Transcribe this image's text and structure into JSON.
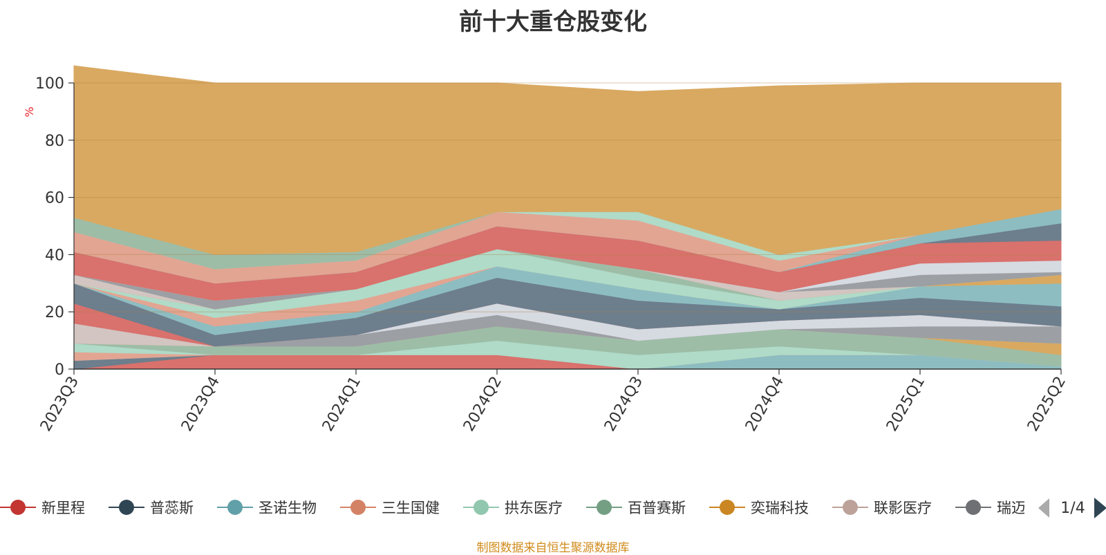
{
  "chart_data": {
    "type": "area",
    "title": "前十大重仓股变化",
    "ylabel": "%",
    "xlabel": "",
    "ylim": [
      0,
      100
    ],
    "yticks": [
      0,
      20,
      40,
      60,
      80,
      100
    ],
    "grid": true,
    "stacked": true,
    "categories": [
      "2023Q3",
      "2023Q4",
      "2024Q1",
      "2024Q2",
      "2024Q3",
      "2024Q4",
      "2025Q1",
      "2025Q2"
    ],
    "series": [
      {
        "name": "新里程",
        "color": "#d9716c",
        "values": [
          0,
          5,
          5,
          5,
          0,
          0,
          0,
          0
        ]
      },
      {
        "name": "普蕊斯",
        "color": "#6d7e8d",
        "values": [
          3,
          0,
          0,
          0,
          0,
          0,
          0,
          0
        ]
      },
      {
        "name": "圣诺生物",
        "color": "#8dbdc1",
        "values": [
          0,
          0,
          0,
          0,
          0,
          5,
          5,
          1
        ]
      },
      {
        "name": "三生国健",
        "color": "#e2a592",
        "values": [
          3,
          0,
          0,
          0,
          0,
          0,
          0,
          0
        ]
      },
      {
        "name": "拱东医疗",
        "color": "#afdbc8",
        "values": [
          3,
          0,
          0,
          5,
          5,
          3,
          0,
          0
        ]
      },
      {
        "name": "百普赛斯",
        "color": "#9dbda7",
        "values": [
          0,
          3,
          3,
          5,
          5,
          6,
          6,
          4
        ]
      },
      {
        "name": "奕瑞科技",
        "color": "#d9a961",
        "values": [
          0,
          0,
          0,
          0,
          0,
          0,
          0,
          4
        ]
      },
      {
        "name": "联影医疗",
        "color": "#d3c5c1",
        "values": [
          7,
          0,
          0,
          0,
          0,
          0,
          0,
          0
        ]
      },
      {
        "name": "瑞迈特",
        "color": "#9c9fa3",
        "values": [
          0,
          0,
          4,
          4,
          0,
          0,
          4,
          6
        ]
      },
      {
        "name": "",
        "color": "#d6dae1",
        "values": [
          0,
          0,
          0,
          4,
          4,
          3,
          4,
          0
        ]
      },
      {
        "name": "",
        "color": "#d9716c",
        "values": [
          7,
          0,
          0,
          0,
          0,
          0,
          0,
          0
        ]
      },
      {
        "name": "",
        "color": "#6d7e8d",
        "values": [
          7,
          4,
          6,
          9,
          10,
          4,
          6,
          7
        ]
      },
      {
        "name": "",
        "color": "#8dbdc1",
        "values": [
          0,
          3,
          2,
          4,
          4,
          0,
          4,
          8
        ]
      },
      {
        "name": "",
        "color": "#e2a592",
        "values": [
          0,
          3,
          4,
          0,
          0,
          0,
          0,
          0
        ]
      },
      {
        "name": "",
        "color": "#afdbc8",
        "values": [
          0,
          3,
          4,
          6,
          4,
          3,
          0,
          0
        ]
      },
      {
        "name": "",
        "color": "#9dbda7",
        "values": [
          0,
          0,
          0,
          0,
          3,
          0,
          0,
          0
        ]
      },
      {
        "name": "",
        "color": "#d9a961",
        "values": [
          0,
          0,
          0,
          0,
          0,
          0,
          0,
          3
        ]
      },
      {
        "name": "",
        "color": "#d3c5c1",
        "values": [
          3,
          0,
          0,
          0,
          0,
          3,
          0,
          0
        ]
      },
      {
        "name": "",
        "color": "#9c9fa3",
        "values": [
          0,
          3,
          0,
          0,
          0,
          0,
          4,
          1
        ]
      },
      {
        "name": "",
        "color": "#d6dae1",
        "values": [
          0,
          0,
          0,
          0,
          0,
          0,
          4,
          4
        ]
      },
      {
        "name": "",
        "color": "#d9716c",
        "values": [
          8,
          6,
          6,
          8,
          10,
          7,
          7,
          7
        ]
      },
      {
        "name": "",
        "color": "#6d7e8d",
        "values": [
          0,
          0,
          0,
          0,
          0,
          0,
          0,
          6
        ]
      },
      {
        "name": "",
        "color": "#8dbdc1",
        "values": [
          0,
          0,
          0,
          0,
          0,
          0,
          3,
          5
        ]
      },
      {
        "name": "",
        "color": "#e2a592",
        "values": [
          7,
          5,
          4,
          5,
          7,
          4,
          0,
          0
        ]
      },
      {
        "name": "",
        "color": "#afdbc8",
        "values": [
          0,
          0,
          0,
          0,
          3,
          2,
          0,
          0
        ]
      },
      {
        "name": "",
        "color": "#9dbda7",
        "values": [
          5,
          5,
          3,
          0,
          0,
          0,
          0,
          0
        ]
      },
      {
        "name": "",
        "color": "#d9a961",
        "values": [
          53,
          60,
          59,
          45,
          42,
          59,
          53,
          44
        ]
      }
    ],
    "legend": {
      "position": "bottom",
      "page": "1/4",
      "items": [
        {
          "name": "新里程",
          "color": "#c23531"
        },
        {
          "name": "普蕊斯",
          "color": "#2f4554"
        },
        {
          "name": "圣诺生物",
          "color": "#61a0a8"
        },
        {
          "name": "三生国健",
          "color": "#d48265"
        },
        {
          "name": "拱东医疗",
          "color": "#91c7ae"
        },
        {
          "name": "百普赛斯",
          "color": "#749f83"
        },
        {
          "name": "奕瑞科技",
          "color": "#ca8622"
        },
        {
          "name": "联影医疗",
          "color": "#bda29a"
        },
        {
          "name": "瑞迈特",
          "color": "#6e7074"
        }
      ]
    }
  },
  "source_note": "制图数据来自恒生聚源数据库"
}
